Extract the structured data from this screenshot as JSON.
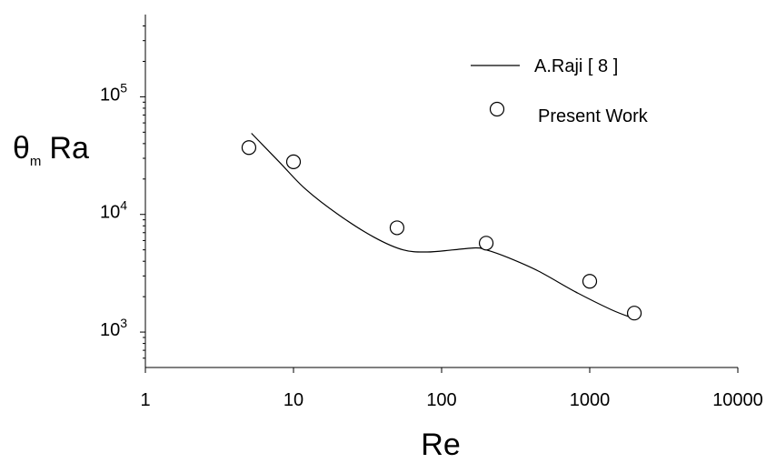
{
  "chart_data": {
    "type": "line",
    "title": "",
    "xlabel": "Re",
    "ylabel": {
      "main": "θ",
      "sub": "m",
      "rest": "Ra"
    },
    "x_scale": "log",
    "y_scale": "log",
    "xlim": [
      1,
      10000
    ],
    "ylim": [
      500,
      500000
    ],
    "x_ticks": [
      {
        "value": 1,
        "label": "1"
      },
      {
        "value": 10,
        "label": "10"
      },
      {
        "value": 100,
        "label": "100"
      },
      {
        "value": 1000,
        "label": "1000"
      },
      {
        "value": 10000,
        "label": "10000"
      }
    ],
    "y_ticks": [
      {
        "value": 1000,
        "base": "10",
        "exp": "3"
      },
      {
        "value": 10000,
        "base": "10",
        "exp": "4"
      },
      {
        "value": 100000,
        "base": "10",
        "exp": "5"
      }
    ],
    "grid": false,
    "legend_position": "top-right",
    "series": [
      {
        "name": "A.Raji [ 8 ]",
        "style": "line",
        "x": [
          5.2,
          8,
          12,
          20,
          35,
          55,
          80,
          120,
          170,
          200,
          280,
          450,
          800,
          1400,
          2000
        ],
        "y": [
          49000,
          28000,
          16500,
          10000,
          6400,
          5000,
          4800,
          5000,
          5200,
          5000,
          4300,
          3300,
          2200,
          1550,
          1300
        ]
      },
      {
        "name": "Present Work",
        "style": "marker",
        "x": [
          5,
          10,
          50,
          200,
          1000,
          2000
        ],
        "y": [
          37000,
          28000,
          7700,
          5700,
          2700,
          1450
        ]
      }
    ]
  }
}
